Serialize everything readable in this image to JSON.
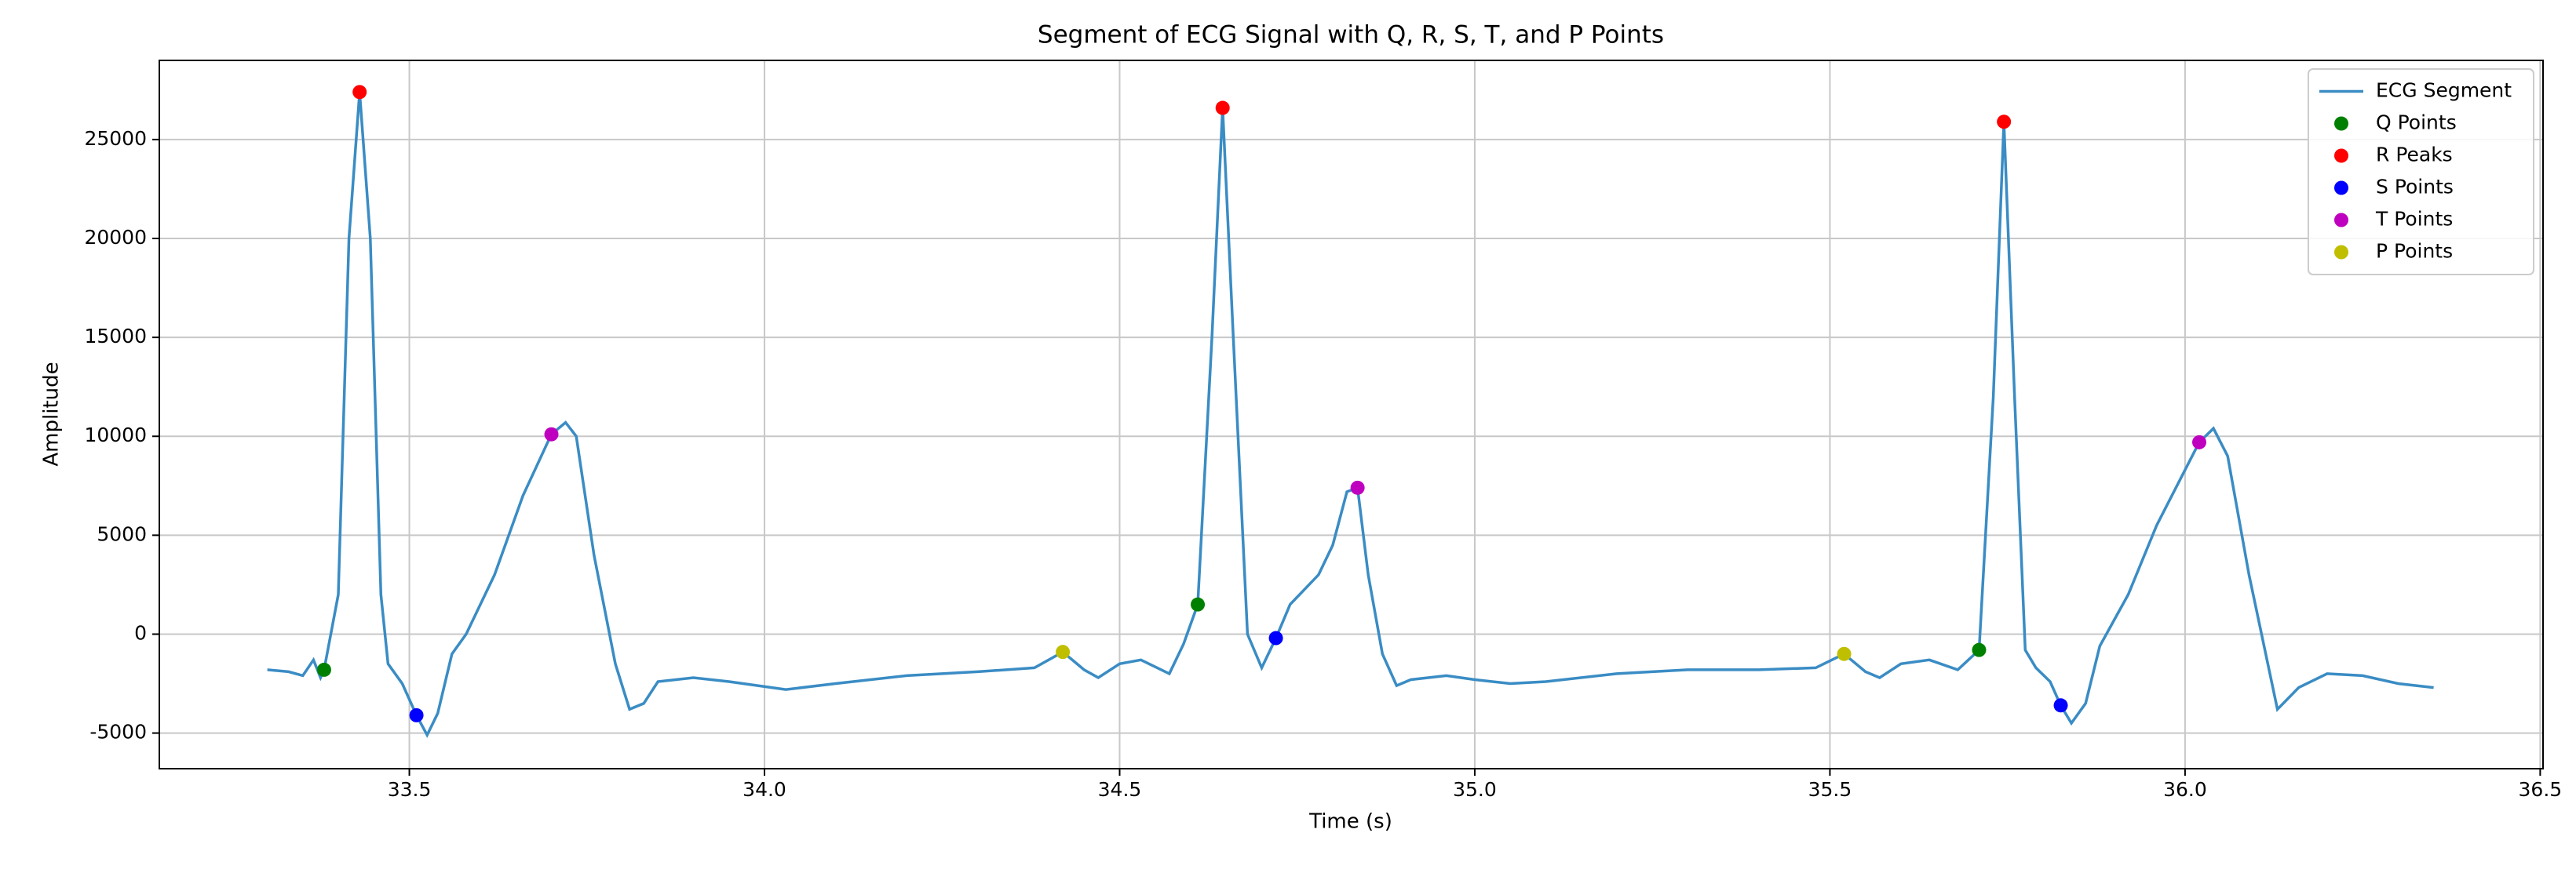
{
  "chart_data": {
    "type": "line",
    "title": "Segment of ECG Signal with Q, R, S, T, and P Points",
    "xlabel": "Time (s)",
    "ylabel": "Amplitude",
    "xlim": [
      33.148,
      36.504
    ],
    "ylim": [
      -6800,
      29000
    ],
    "xticks": [
      33.5,
      {
        "value": 34,
        "label": "34.0"
      },
      34.5,
      {
        "value": 35,
        "label": "35.0"
      },
      35.5,
      {
        "value": 36,
        "label": "36.0"
      },
      36.5
    ],
    "yticks": [
      -5000,
      0,
      5000,
      10000,
      15000,
      20000,
      25000
    ],
    "grid": true,
    "legend": "upper right",
    "series": [
      {
        "name": "ECG Segment",
        "color": "#3a8cc4",
        "type": "line",
        "x": [
          33.3,
          33.33,
          33.35,
          33.365,
          33.375,
          33.38,
          33.4,
          33.415,
          33.43,
          33.445,
          33.46,
          33.47,
          33.49,
          33.51,
          33.525,
          33.54,
          33.56,
          33.58,
          33.62,
          33.66,
          33.7,
          33.72,
          33.735,
          33.76,
          33.79,
          33.81,
          33.83,
          33.85,
          33.9,
          33.95,
          34.03,
          34.1,
          34.2,
          34.3,
          34.38,
          34.42,
          34.45,
          34.47,
          34.5,
          34.53,
          34.57,
          34.59,
          34.61,
          34.63,
          34.645,
          34.66,
          34.68,
          34.7,
          34.72,
          34.74,
          34.78,
          34.8,
          34.82,
          34.835,
          34.85,
          34.87,
          34.89,
          34.91,
          34.96,
          35.0,
          35.05,
          35.1,
          35.2,
          35.3,
          35.4,
          35.48,
          35.52,
          35.55,
          35.57,
          35.6,
          35.64,
          35.68,
          35.71,
          35.73,
          35.745,
          35.76,
          35.775,
          35.79,
          35.81,
          35.825,
          35.84,
          35.86,
          35.88,
          35.92,
          35.96,
          36.02,
          36.04,
          36.06,
          36.09,
          36.13,
          36.16,
          36.2,
          36.25,
          36.3,
          36.35
        ],
        "values": [
          -1800,
          -1900,
          -2100,
          -1300,
          -2200,
          -1800,
          2000,
          20000,
          27400,
          20000,
          2000,
          -1500,
          -2500,
          -4100,
          -5100,
          -4000,
          -1000,
          0,
          3000,
          7000,
          10100,
          10700,
          10000,
          4000,
          -1500,
          -3800,
          -3500,
          -2400,
          -2200,
          -2400,
          -2800,
          -2500,
          -2100,
          -1900,
          -1700,
          -900,
          -1800,
          -2200,
          -1500,
          -1300,
          -2000,
          -500,
          1500,
          15000,
          26600,
          15000,
          0,
          -1700,
          -200,
          1500,
          3000,
          4500,
          7200,
          7400,
          3000,
          -1000,
          -2600,
          -2300,
          -2100,
          -2300,
          -2500,
          -2400,
          -2000,
          -1800,
          -1800,
          -1700,
          -1000,
          -1900,
          -2200,
          -1500,
          -1300,
          -1800,
          -800,
          12000,
          25900,
          12000,
          -800,
          -1700,
          -2400,
          -3600,
          -4500,
          -3500,
          -600,
          2000,
          5500,
          9700,
          10400,
          9000,
          3000,
          -3800,
          -2700,
          -2000,
          -2100,
          -2500,
          -2700
        ]
      },
      {
        "name": "Q Points",
        "color": "#008000",
        "type": "scatter",
        "x": [
          33.38,
          34.61,
          35.71
        ],
        "values": [
          -1800,
          1500,
          -800
        ]
      },
      {
        "name": "R Peaks",
        "color": "#ff0000",
        "type": "scatter",
        "x": [
          33.43,
          34.645,
          35.745
        ],
        "values": [
          27400,
          26600,
          25900
        ]
      },
      {
        "name": "S Points",
        "color": "#0000ff",
        "type": "scatter",
        "x": [
          33.51,
          34.72,
          35.825
        ],
        "values": [
          -4100,
          -200,
          -3600
        ]
      },
      {
        "name": "T Points",
        "color": "#bf00bf",
        "type": "scatter",
        "x": [
          33.7,
          34.835,
          36.02
        ],
        "values": [
          10100,
          7400,
          9700
        ]
      },
      {
        "name": "P Points",
        "color": "#bfbf00",
        "type": "scatter",
        "x": [
          34.42,
          35.52
        ],
        "values": [
          -900,
          -1000
        ]
      }
    ]
  }
}
